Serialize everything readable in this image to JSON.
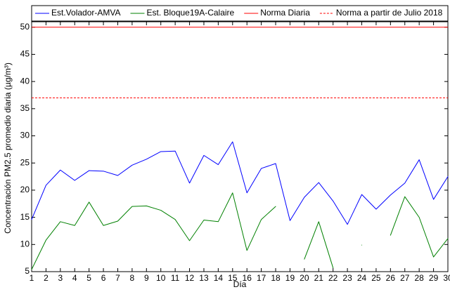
{
  "chart_data": {
    "type": "line",
    "xlabel": "Día",
    "ylabel": "Concentración PM2.5 promedio diaria (µg/m³)",
    "x": [
      1,
      2,
      3,
      4,
      5,
      6,
      7,
      8,
      9,
      10,
      11,
      12,
      13,
      14,
      15,
      16,
      17,
      18,
      19,
      20,
      21,
      22,
      23,
      24,
      25,
      26,
      27,
      28,
      29,
      30
    ],
    "xlim": [
      1,
      30
    ],
    "xticks": [
      1,
      2,
      3,
      4,
      5,
      6,
      7,
      8,
      9,
      10,
      11,
      12,
      13,
      14,
      15,
      16,
      17,
      18,
      19,
      20,
      21,
      22,
      23,
      24,
      25,
      26,
      27,
      28,
      29,
      30
    ],
    "ylim": [
      5,
      51
    ],
    "yticks": [
      5,
      10,
      15,
      20,
      25,
      30,
      35,
      40,
      45,
      50
    ],
    "series": [
      {
        "name": "Est.Volador-AMVA",
        "color": "#0000ff",
        "values": [
          14.6,
          20.9,
          23.7,
          21.8,
          23.6,
          23.5,
          22.7,
          24.6,
          25.7,
          27.1,
          27.2,
          21.3,
          26.4,
          24.7,
          28.9,
          19.5,
          24.0,
          24.9,
          14.4,
          18.7,
          21.4,
          18.0,
          13.7,
          19.2,
          16.5,
          19.1,
          21.3,
          25.6,
          18.3,
          22.5
        ]
      },
      {
        "name": "Est. Bloque19A-Calaire",
        "color": "#008000",
        "values": [
          5.4,
          10.8,
          14.2,
          13.5,
          17.8,
          13.5,
          14.3,
          17.0,
          17.1,
          16.3,
          14.6,
          10.7,
          14.5,
          14.2,
          19.5,
          8.9,
          14.6,
          17.0,
          null,
          7.3,
          14.2,
          5.7,
          null,
          9.9,
          null,
          11.7,
          18.8,
          15.0,
          7.7,
          11.1
        ]
      }
    ],
    "reference_lines": [
      {
        "name": "Norma Diaria",
        "color": "#ff0000",
        "value": 50,
        "dashed": false
      },
      {
        "name": "Norma a partir de Julio 2018",
        "color": "#ff0000",
        "value": 37,
        "dashed": true
      }
    ]
  }
}
